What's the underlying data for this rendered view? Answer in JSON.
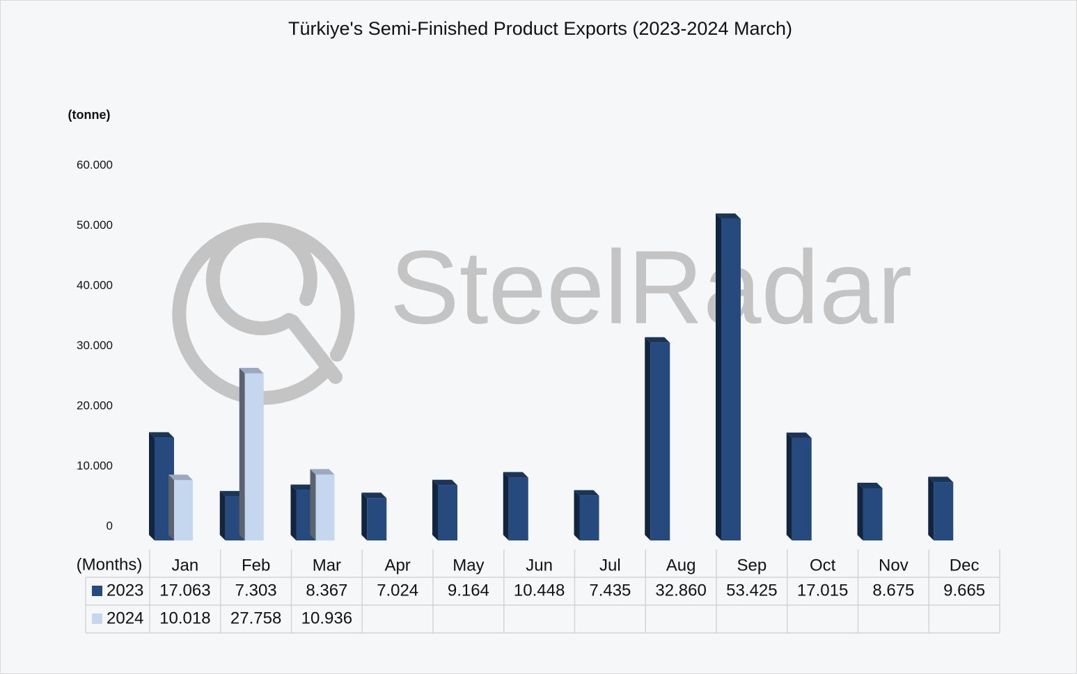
{
  "chart_data": {
    "type": "bar3d",
    "title": "Türkiye's Semi-Finished Product Exports (2023-2024 March)",
    "y_axis_label": "(tonne)",
    "x_axis_label": "(Months)",
    "watermark": "SteelRadar",
    "categories": [
      "Jan",
      "Feb",
      "Mar",
      "Apr",
      "May",
      "Jun",
      "Jul",
      "Aug",
      "Sep",
      "Oct",
      "Nov",
      "Dec"
    ],
    "series": [
      {
        "name": "2023",
        "color": "#264a7e",
        "values": [
          17063,
          7303,
          8367,
          7024,
          9164,
          10448,
          7435,
          32860,
          53425,
          17015,
          8675,
          9665
        ],
        "value_labels": [
          "17.063",
          "7.303",
          "8.367",
          "7.024",
          "9.164",
          "10.448",
          "7.435",
          "32.860",
          "53.425",
          "17.015",
          "8.675",
          "9.665"
        ]
      },
      {
        "name": "2024",
        "color": "#c5d7ee",
        "values": [
          10018,
          27758,
          10936,
          null,
          null,
          null,
          null,
          null,
          null,
          null,
          null,
          null
        ],
        "value_labels": [
          "10.018",
          "27.758",
          "10.936",
          null,
          null,
          null,
          null,
          null,
          null,
          null,
          null,
          null
        ]
      }
    ],
    "ylim": [
      0,
      60000
    ],
    "yticks": [
      0,
      {
        "value": 10000,
        "label": "10.000"
      },
      {
        "value": 20000,
        "label": "20.000"
      },
      {
        "value": 30000,
        "label": "30.000"
      },
      {
        "value": 40000,
        "label": "40.000"
      },
      {
        "value": 50000,
        "label": "50.000"
      },
      {
        "value": 60000,
        "label": "60.000"
      }
    ],
    "grid": false
  }
}
